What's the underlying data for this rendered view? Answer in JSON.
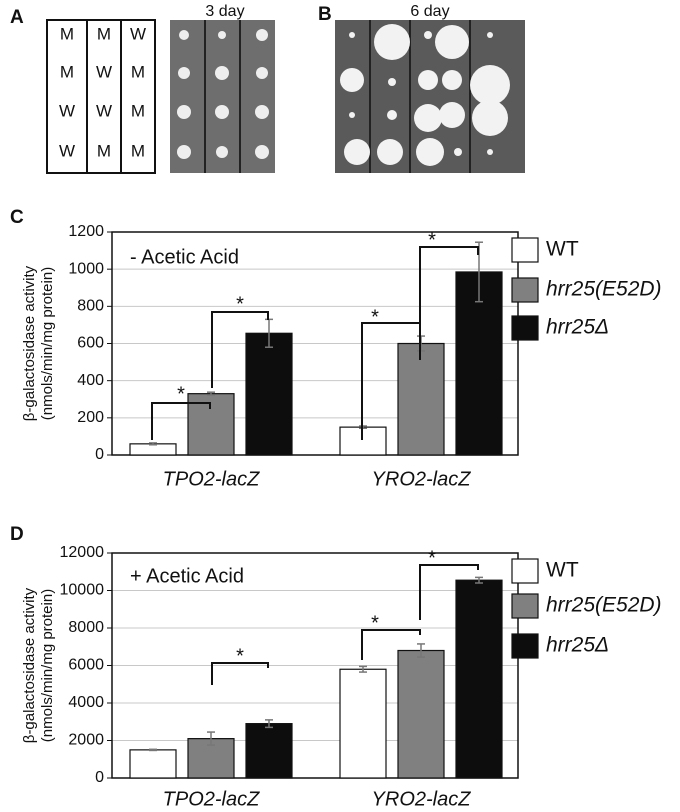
{
  "panels": {
    "A": {
      "label": "A",
      "grid": [
        [
          "M",
          "M",
          "W"
        ],
        [
          "M",
          "W",
          "M"
        ],
        [
          "W",
          "W",
          "M"
        ],
        [
          "W",
          "M",
          "M"
        ]
      ],
      "photo_label": "3 day"
    },
    "B": {
      "label": "B",
      "photo_label": "6 day"
    }
  },
  "chart_data": [
    {
      "type": "bar",
      "panel_label": "C",
      "title": "- Acetic Acid",
      "ylabel": [
        "β-galactosidase activity",
        "(nmols/min/mg protein)"
      ],
      "categories": [
        "TPO2-lacZ",
        "YRO2-lacZ"
      ],
      "series": [
        {
          "name": "WT",
          "color": "#ffffff",
          "values": [
            60,
            150
          ],
          "errors": [
            5,
            6
          ]
        },
        {
          "name": "hrr25(E52D)",
          "color": "#808080",
          "values": [
            330,
            600
          ],
          "errors": [
            8,
            40
          ]
        },
        {
          "name": "hrr25Δ",
          "color": "#0d0d0d",
          "values": [
            655,
            985
          ],
          "errors": [
            75,
            160
          ]
        }
      ],
      "annotations": [
        "*",
        "*",
        "*",
        "*"
      ],
      "ylim": [
        0,
        1200
      ],
      "yticks": [
        0,
        200,
        400,
        600,
        800,
        1000,
        1200
      ],
      "grid": true,
      "legend": "right"
    },
    {
      "type": "bar",
      "panel_label": "D",
      "title": "+ Acetic Acid",
      "ylabel": [
        "β-galactosidase activity",
        "(nmols/min/mg protein)"
      ],
      "categories": [
        "TPO2-lacZ",
        "YRO2-lacZ"
      ],
      "series": [
        {
          "name": "WT",
          "color": "#ffffff",
          "values": [
            1500,
            5800
          ],
          "errors": [
            30,
            150
          ]
        },
        {
          "name": "hrr25(E52D)",
          "color": "#808080",
          "values": [
            2100,
            6800
          ],
          "errors": [
            350,
            350
          ]
        },
        {
          "name": "hrr25Δ",
          "color": "#0d0d0d",
          "values": [
            2900,
            10550
          ],
          "errors": [
            200,
            150
          ]
        }
      ],
      "annotations": [
        "*",
        "*",
        "*"
      ],
      "ylim": [
        0,
        12000
      ],
      "yticks": [
        0,
        2000,
        4000,
        6000,
        8000,
        10000,
        12000
      ],
      "grid": true,
      "legend": "right"
    }
  ]
}
